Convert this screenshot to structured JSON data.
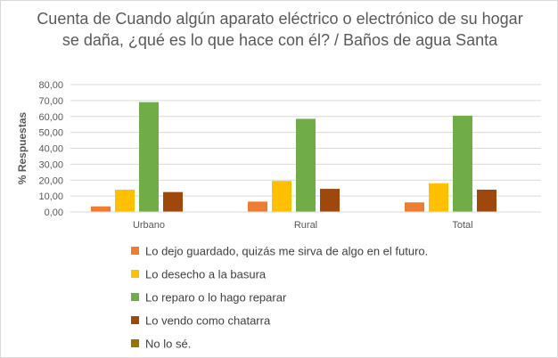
{
  "chart_data": {
    "type": "bar",
    "title": "Cuenta de Cuando algún aparato eléctrico o electrónico de su hogar se daña, ¿qué es lo que hace con él? / Baños de agua Santa",
    "ylabel": "% Respuestas",
    "xlabel": "",
    "categories": [
      "Urbano",
      "Rural",
      "Total"
    ],
    "ylim": [
      0,
      80
    ],
    "yticks": [
      "0,00",
      "10,00",
      "20,00",
      "30,00",
      "40,00",
      "50,00",
      "60,00",
      "70,00",
      "80,00"
    ],
    "grid": true,
    "legend_position": "bottom",
    "series": [
      {
        "name": "Lo dejo guardado, quizás me sirva de algo en el futuro.",
        "color": "#ed7d31",
        "values": [
          3.5,
          6.5,
          6.0
        ]
      },
      {
        "name": "Lo desecho a la basura",
        "color": "#ffc000",
        "values": [
          14.0,
          19.5,
          18.0
        ]
      },
      {
        "name": "Lo reparo o lo hago reparar",
        "color": "#70ad47",
        "values": [
          69.0,
          58.5,
          60.5
        ]
      },
      {
        "name": "Lo vendo como chatarra",
        "color": "#9e480e",
        "values": [
          12.5,
          14.5,
          14.0
        ]
      },
      {
        "name": "No lo sé.",
        "color": "#997300",
        "values": [
          0,
          0,
          0
        ]
      }
    ]
  }
}
